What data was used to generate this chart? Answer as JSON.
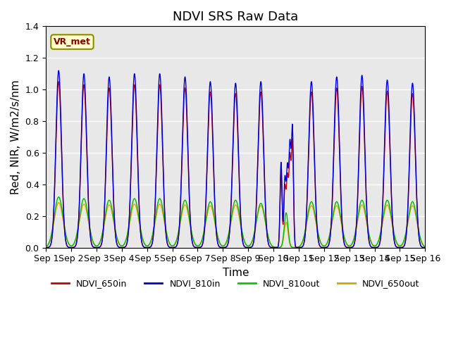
{
  "title": "NDVI SRS Raw Data",
  "ylabel": "Red, NIR, W/m2/s/nm",
  "xlabel": "Time",
  "ylim": [
    0,
    1.4
  ],
  "xlim_days": [
    0,
    15
  ],
  "annotation_text": "VR_met",
  "legend_entries": [
    "NDVI_650in",
    "NDVI_810in",
    "NDVI_810out",
    "NDVI_650out"
  ],
  "legend_colors": [
    "#cc0000",
    "#0000cc",
    "#00cc00",
    "#ccaa00"
  ],
  "line_colors": {
    "NDVI_650in": "#cc0000",
    "NDVI_810in": "#0000dd",
    "NDVI_810out": "#00bb00",
    "NDVI_650out": "#ddaa00"
  },
  "xtick_labels": [
    "Sep 1",
    "Sep 2",
    "Sep 3",
    "Sep 4",
    "Sep 5",
    "Sep 6",
    "Sep 7",
    "Sep 8",
    "Sep 9",
    "Sep 10",
    "Sep 11",
    "Sep 12",
    "Sep 13",
    "Sep 14",
    "Sep 15",
    "Sep 16"
  ],
  "background_color": "#e8e8e8",
  "title_fontsize": 13,
  "axis_fontsize": 11,
  "tick_fontsize": 9
}
